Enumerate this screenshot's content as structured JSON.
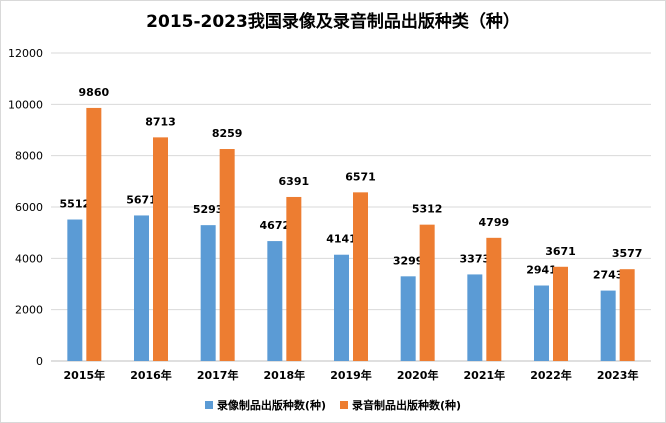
{
  "chart_data": {
    "type": "bar",
    "title": "2015-2023我国录像及录音制品出版种类（种）",
    "categories": [
      "2015年",
      "2016年",
      "2017年",
      "2018年",
      "2019年",
      "2020年",
      "2021年",
      "2022年",
      "2023年"
    ],
    "series": [
      {
        "name": "录像制品出版种数(种)",
        "color": "#5b9bd5",
        "values": [
          5512,
          5671,
          5293,
          4672,
          4141,
          3299,
          3373,
          2941,
          2743
        ]
      },
      {
        "name": "录音制品出版种数(种)",
        "color": "#ed7d31",
        "values": [
          9860,
          8713,
          8259,
          6391,
          6571,
          5312,
          4799,
          3671,
          3577
        ]
      }
    ],
    "ylim": [
      0,
      12000
    ],
    "yticks": [
      0,
      2000,
      4000,
      6000,
      8000,
      10000,
      12000
    ],
    "grid": true,
    "legend_position": "bottom"
  }
}
